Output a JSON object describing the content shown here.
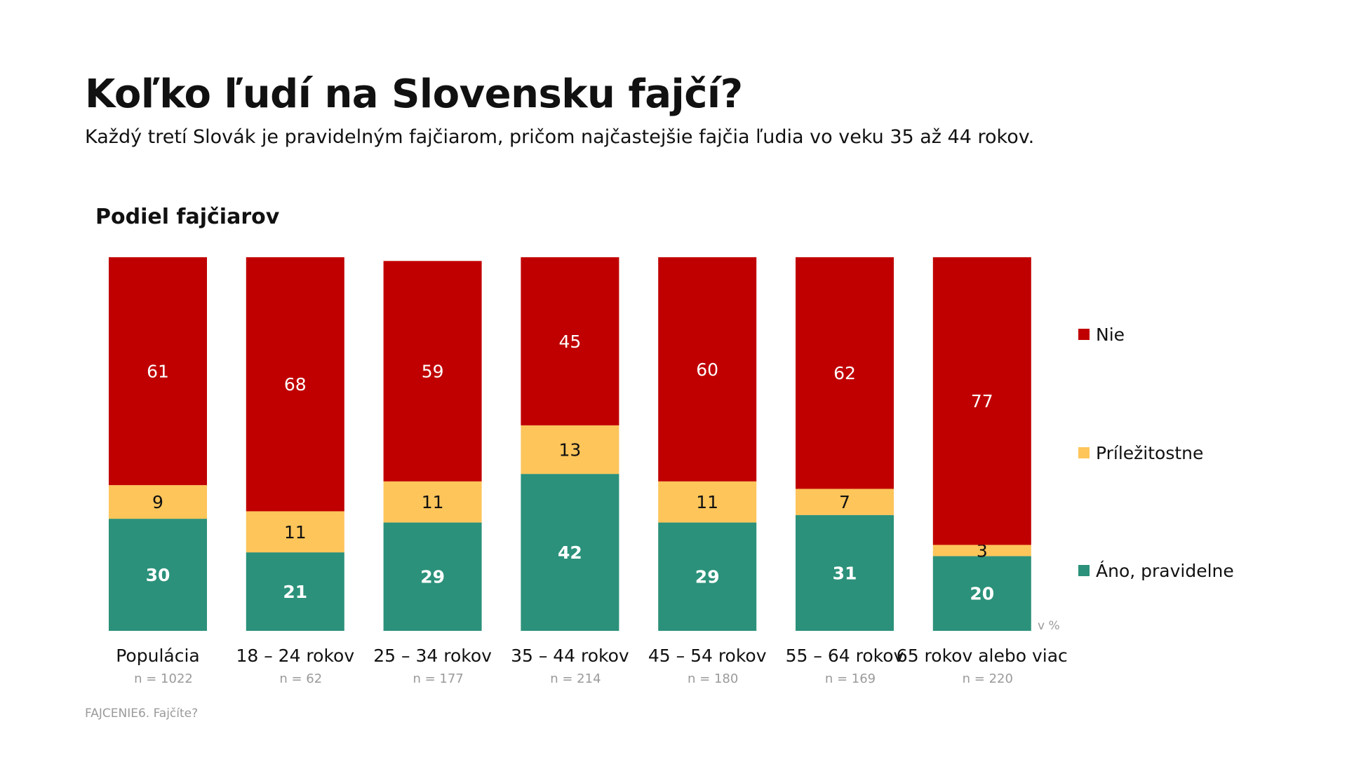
{
  "header": {
    "title": "Koľko ľudí na Slovensku fajčí?",
    "subtitle": "Každý tretí Slovák je pravidelným fajčiarom, pričom najčastejšie fajčia ľudia vo veku 35 až 44 rokov."
  },
  "footnote": "FAJCENIE6. Fajčíte?",
  "colors": {
    "nie": "#C00000",
    "prilezitostne": "#FDC55A",
    "ano": "#2B917A"
  },
  "chart_data": {
    "type": "bar",
    "stacked": true,
    "title": "Podiel fajčiarov",
    "unit_label": "v %",
    "ylim": [
      0,
      100
    ],
    "legend_position": "right",
    "categories": [
      "Populácia",
      "18 – 24 rokov",
      "25 – 34 rokov",
      "35 – 44 rokov",
      "45 – 54 rokov",
      "55 – 64 rokov",
      "65 rokov alebo viac"
    ],
    "sample_sizes": [
      "n = 1022",
      "n = 62",
      "n = 177",
      "n = 214",
      "n = 180",
      "n = 169",
      "n = 220"
    ],
    "series": [
      {
        "name": "Áno, pravidelne",
        "key": "ano",
        "values": [
          30,
          21,
          29,
          42,
          29,
          31,
          20
        ]
      },
      {
        "name": "Príležitostne",
        "key": "prilezitostne",
        "values": [
          9,
          11,
          11,
          13,
          11,
          7,
          3
        ]
      },
      {
        "name": "Nie",
        "key": "nie",
        "values": [
          61,
          68,
          59,
          45,
          60,
          62,
          77
        ]
      }
    ],
    "legend_order": [
      "Nie",
      "Príležitostne",
      "Áno, pravidelne"
    ]
  }
}
